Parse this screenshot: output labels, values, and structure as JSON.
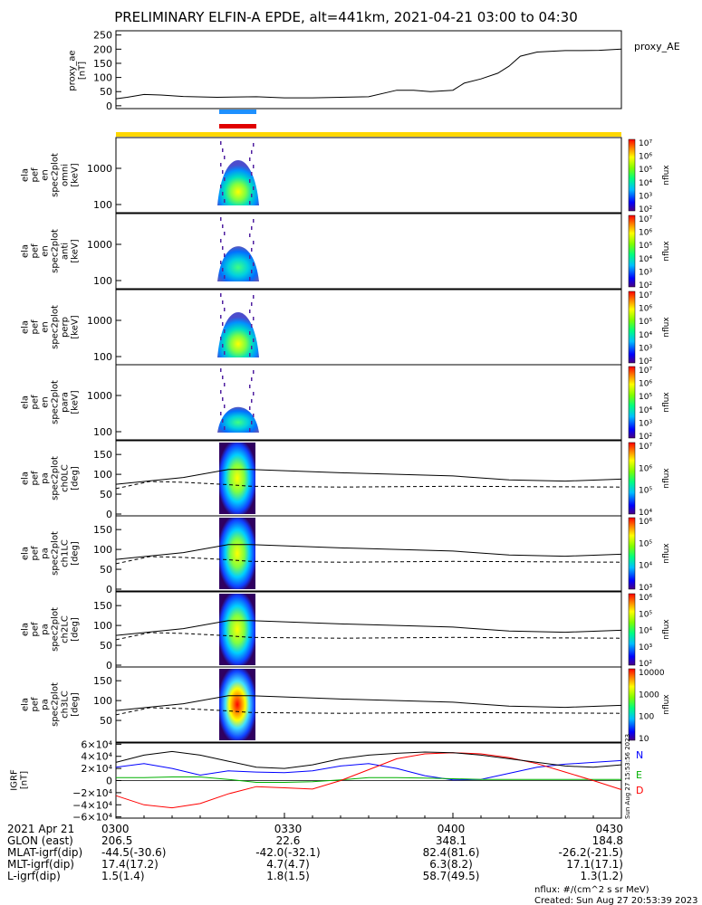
{
  "title": "PRELIMINARY ELFIN-A EPDE, alt=441km, 2021-04-21 03:00 to 04:30",
  "colors": {
    "line": "#000000",
    "blue_bar": "#1e90ff",
    "red_bar": "#e00000",
    "yellow_bar": "#ffd700",
    "N": "#0000ff",
    "E": "#00b000",
    "D": "#ff0000"
  },
  "chart_data": [
    {
      "type": "line",
      "ylabel": "proxy_ae [nT]",
      "legend": "proxy_AE",
      "y_ticks": [
        "250",
        "200",
        "150",
        "100",
        "50",
        "0"
      ],
      "ylim": [
        -10,
        265
      ],
      "xlim": [
        0,
        90
      ],
      "x_min": [
        0,
        2,
        5,
        8,
        12,
        18,
        25,
        30,
        35,
        40,
        45,
        50,
        53,
        56,
        60,
        62,
        65,
        68,
        70,
        72,
        75,
        78,
        80,
        83,
        86,
        90
      ],
      "values": [
        25,
        30,
        40,
        38,
        33,
        30,
        32,
        28,
        28,
        30,
        32,
        55,
        55,
        50,
        55,
        80,
        95,
        115,
        140,
        175,
        190,
        193,
        195,
        195,
        196,
        200
      ]
    },
    {
      "type": "heatmap",
      "ylabel": "ela pef en spec2plot omni [keV]",
      "y_ticks": [
        "1000",
        "100"
      ],
      "colorbar_ticks": [
        "10⁷",
        "10⁶",
        "10⁵",
        "10⁴",
        "10³",
        "10²"
      ],
      "colorbar_label": "nflux"
    },
    {
      "type": "heatmap",
      "ylabel": "ela pef en spec2plot anti [keV]",
      "y_ticks": [
        "1000",
        "100"
      ],
      "colorbar_ticks": [
        "10⁷",
        "10⁶",
        "10⁵",
        "10⁴",
        "10³",
        "10²"
      ],
      "colorbar_label": "nflux"
    },
    {
      "type": "heatmap",
      "ylabel": "ela pef en spec2plot perp [keV]",
      "y_ticks": [
        "1000",
        "100"
      ],
      "colorbar_ticks": [
        "10⁷",
        "10⁶",
        "10⁵",
        "10⁴",
        "10³",
        "10²"
      ],
      "colorbar_label": "nflux"
    },
    {
      "type": "heatmap",
      "ylabel": "ela pef en spec2plot para [keV]",
      "y_ticks": [
        "1000",
        "100"
      ],
      "colorbar_ticks": [
        "10⁷",
        "10⁶",
        "10⁵",
        "10⁴",
        "10³",
        "10²"
      ],
      "colorbar_label": "nflux"
    },
    {
      "type": "heatmap",
      "ylabel": "ela pef pa spec2plot ch0LC [deg]",
      "y_ticks": [
        "150",
        "100",
        "50",
        "0"
      ],
      "colorbar_ticks": [
        "10⁷",
        "10⁶",
        "10⁵",
        "10⁴"
      ],
      "colorbar_label": "nflux"
    },
    {
      "type": "heatmap",
      "ylabel": "ela pef pa spec2plot ch1LC [deg]",
      "y_ticks": [
        "150",
        "100",
        "50",
        "0"
      ],
      "colorbar_ticks": [
        "10⁶",
        "10⁵",
        "10⁴",
        "10³"
      ],
      "colorbar_label": "nflux"
    },
    {
      "type": "heatmap",
      "ylabel": "ela pef pa spec2plot ch2LC [deg]",
      "y_ticks": [
        "150",
        "100",
        "50",
        "0"
      ],
      "colorbar_ticks": [
        "10⁶",
        "10⁵",
        "10⁴",
        "10³",
        "10²"
      ],
      "colorbar_label": "nflux"
    },
    {
      "type": "heatmap",
      "ylabel": "ela pef pa spec2plot ch3LC [deg]",
      "y_ticks": [
        "150",
        "100",
        "50"
      ],
      "colorbar_ticks": [
        "10000",
        "1000",
        "100",
        "10"
      ],
      "colorbar_label": "nflux"
    },
    {
      "type": "line",
      "ylabel": "IGRF [nT]",
      "y_ticks": [
        "6×10⁴",
        "4×10⁴",
        "2×10⁴",
        "0",
        "−2×10⁴",
        "−4×10⁴",
        "−6×10⁴"
      ],
      "ylim": [
        -62000,
        62000
      ],
      "xlim": [
        0,
        90
      ],
      "series": [
        {
          "name": "N",
          "x": [
            0,
            5,
            10,
            15,
            20,
            25,
            30,
            35,
            40,
            45,
            50,
            55,
            60,
            65,
            70,
            75,
            80,
            85,
            90
          ],
          "values": [
            22000,
            28000,
            20000,
            9000,
            16000,
            14000,
            13000,
            16000,
            24000,
            28000,
            20000,
            8000,
            1000,
            2000,
            12000,
            22000,
            27000,
            30000,
            33000
          ]
        },
        {
          "name": "E",
          "x": [
            0,
            5,
            10,
            15,
            20,
            25,
            30,
            35,
            40,
            45,
            50,
            55,
            60,
            65,
            70,
            75,
            80,
            85,
            90
          ],
          "values": [
            5000,
            5000,
            6000,
            6000,
            2000,
            -3000,
            -3000,
            -2000,
            1000,
            5000,
            5000,
            4000,
            3000,
            2000,
            2000,
            2000,
            2000,
            2000,
            2000
          ]
        },
        {
          "name": "D",
          "x": [
            0,
            5,
            10,
            15,
            20,
            25,
            30,
            35,
            40,
            45,
            50,
            55,
            60,
            65,
            70,
            75,
            80,
            85,
            90
          ],
          "values": [
            -25000,
            -40000,
            -45000,
            -38000,
            -22000,
            -10000,
            -12000,
            -14000,
            0,
            18000,
            36000,
            44000,
            46000,
            44000,
            38000,
            28000,
            14000,
            0,
            -15000
          ]
        },
        {
          "name": "",
          "x": [
            0,
            5,
            10,
            15,
            20,
            25,
            30,
            35,
            40,
            45,
            50,
            55,
            60,
            65,
            70,
            75,
            80,
            85,
            90
          ],
          "values": [
            30000,
            42000,
            48000,
            42000,
            32000,
            22000,
            20000,
            26000,
            36000,
            42000,
            45000,
            47000,
            46000,
            42000,
            36000,
            30000,
            24000,
            22000,
            26000
          ]
        }
      ]
    }
  ],
  "x_axis": {
    "row_labels": [
      "2021 Apr 21",
      "GLON (east)",
      "MLAT-igrf(dip)",
      "MLT-igrf(dip)",
      "L-igrf(dip)"
    ],
    "columns": [
      {
        "time": "0300",
        "glon": "206.5",
        "mlat": "-44.5(-30.6)",
        "mlt": "17.4(17.2)",
        "l": "1.5(1.4)"
      },
      {
        "time": "0330",
        "glon": "22.6",
        "mlat": "-42.0(-32.1)",
        "mlt": "4.7(4.7)",
        "l": "1.8(1.5)"
      },
      {
        "time": "0400",
        "glon": "348.1",
        "mlat": "82.4(81.6)",
        "mlt": "6.3(8.2)",
        "l": "58.7(49.5)"
      },
      {
        "time": "0430",
        "glon": "184.8",
        "mlat": "-26.2(-21.5)",
        "mlt": "17.1(17.1)",
        "l": "1.3(1.2)"
      }
    ]
  },
  "footer": {
    "units": "nflux: #/(cm^2 s sr MeV)",
    "created": "Created: Sun Aug 27 20:53:39 2023",
    "side_stamp": "Sun Aug 27 15:53:56 2023"
  }
}
